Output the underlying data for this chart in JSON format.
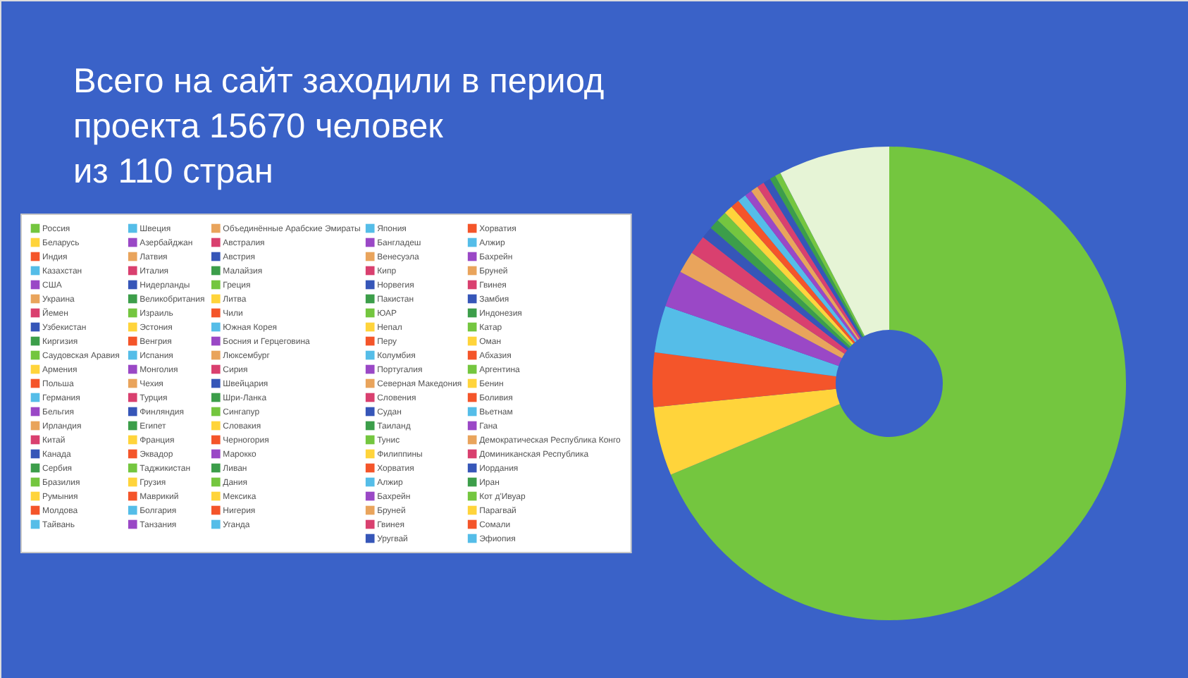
{
  "chart_data": {
    "type": "donut",
    "title": "Всего на сайт заходили в период\nпроекта 15670 человек\nиз 110 стран",
    "legend": "left",
    "categories": [
      "Россия",
      "Беларусь",
      "Индия",
      "Казахстан",
      "США",
      "Украина",
      "Йемен",
      "Узбекистан",
      "Киргизия",
      "Саудовская Аравия",
      "Армения",
      "Польша",
      "Германия",
      "Бельгия",
      "Ирландия",
      "Китай",
      "Канада",
      "Сербия",
      "Бразилия",
      "Румыния",
      "Молдова",
      "Тайвань",
      "Швеция",
      "Азербайджан",
      "Латвия",
      "Италия",
      "Нидерланды",
      "Великобритания",
      "Израиль",
      "Эстония",
      "Венгрия",
      "Испания",
      "Монголия",
      "Чехия",
      "Турция",
      "Финляндия",
      "Египет",
      "Франция",
      "Эквадор",
      "Таджикистан",
      "Грузия",
      "Маврикий",
      "Болгария",
      "Танзания",
      "Объединённые Арабские Эмираты",
      "Австралия",
      "Австрия",
      "Малайзия",
      "Греция",
      "Литва",
      "Чили",
      "Южная Корея",
      "Босния и Герцеговина",
      "Люксембург",
      "Сирия",
      "Швейцария",
      "Шри-Ланка",
      "Сингапур",
      "Словакия",
      "Черногория",
      "Марокко",
      "Ливан",
      "Дания",
      "Мексика",
      "Нигерия",
      "Уганда",
      "Япония",
      "Бангладеш",
      "Венесуэла",
      "Кипр",
      "Норвегия",
      "Пакистан",
      "ЮАР",
      "Непал",
      "Перу",
      "Колумбия",
      "Португалия",
      "Северная Македония",
      "Словения",
      "Судан",
      "Таиланд",
      "Тунис",
      "Филиппины",
      "Хорватия",
      "Алжир",
      "Бахрейн",
      "Бруней",
      "Гвинея",
      "Уругвай",
      "Хорватия",
      "Алжир",
      "Бахрейн",
      "Бруней",
      "Гвинея",
      "Замбия",
      "Индонезия",
      "Катар",
      "Оман",
      "Абхазия",
      "Аргентина",
      "Бенин",
      "Боливия",
      "Вьетнам",
      "Гана",
      "Демократическая Республика Конго",
      "Доминиканская Республика",
      "Иордания",
      "Иран",
      "Кот д'Ивуар",
      "Парагвай",
      "Сомали",
      "Эфиопия",
      null
    ],
    "values": [
      68.7,
      4.7,
      3.7,
      3.2,
      2.5,
      1.5,
      1.3,
      0.8,
      0.7,
      0.7,
      0.6,
      0.6,
      0.6,
      0.5,
      0.5,
      0.5,
      0.5,
      0.4,
      0.4,
      null,
      null,
      null,
      null,
      null,
      null,
      null,
      null,
      null,
      null,
      null,
      null,
      null,
      null,
      null,
      null,
      null,
      null,
      null,
      null,
      null,
      null,
      null,
      null,
      null,
      null,
      null,
      null,
      null,
      null,
      null,
      null,
      null,
      null,
      null,
      null,
      null,
      null,
      null,
      null,
      null,
      null,
      null,
      null,
      null,
      null,
      null,
      null,
      null,
      null,
      null,
      null,
      null,
      null,
      null,
      null,
      null,
      null,
      null,
      null,
      null,
      null,
      null,
      null,
      null,
      null,
      null,
      null,
      null,
      null,
      null,
      null,
      null,
      null,
      null,
      null,
      null,
      null,
      null,
      null,
      null,
      null,
      null,
      null,
      null,
      null,
      null,
      null,
      null,
      null,
      null,
      null,
      null,
      7.6
    ],
    "colors": [
      "#74c63f",
      "#ffd43b",
      "#f4552a",
      "#55bde8",
      "#9a48c6",
      "#e9a45c",
      "#d9406f",
      "#3656b8",
      "#3c9e4a",
      "#74c63f",
      "#ffd43b",
      "#f4552a",
      "#55bde8",
      "#9a48c6",
      "#e9a45c",
      "#d9406f",
      "#3656b8",
      "#3c9e4a",
      "#74c63f",
      "#ffd43b",
      "#f4552a",
      "#55bde8",
      "#55bde8",
      "#9a48c6",
      "#e9a45c",
      "#d9406f",
      "#3656b8",
      "#3c9e4a",
      "#74c63f",
      "#ffd43b",
      "#f4552a",
      "#55bde8",
      "#9a48c6",
      "#e9a45c",
      "#d9406f",
      "#3656b8",
      "#3c9e4a",
      "#ffd43b",
      "#f4552a",
      "#74c63f",
      "#ffd43b",
      "#f4552a",
      "#55bde8",
      "#9a48c6",
      "#e9a45c",
      "#d9406f",
      "#3656b8",
      "#3c9e4a",
      "#74c63f",
      "#ffd43b",
      "#f4552a",
      "#55bde8",
      "#9a48c6",
      "#e9a45c",
      "#d9406f",
      "#3656b8",
      "#3c9e4a",
      "#74c63f",
      "#ffd43b",
      "#f4552a",
      "#9a48c6",
      "#3c9e4a",
      "#74c63f",
      "#ffd43b",
      "#f4552a",
      "#55bde8",
      "#55bde8",
      "#9a48c6",
      "#e9a45c",
      "#d9406f",
      "#3656b8",
      "#3c9e4a",
      "#74c63f",
      "#ffd43b",
      "#f4552a",
      "#55bde8",
      "#9a48c6",
      "#e9a45c",
      "#d9406f",
      "#3656b8",
      "#3c9e4a",
      "#74c63f",
      "#ffd43b",
      "#f4552a",
      "#55bde8",
      "#9a48c6",
      "#e9a45c",
      "#d9406f",
      "#3656b8",
      "#f4552a",
      "#55bde8",
      "#9a48c6",
      "#e9a45c",
      "#d9406f",
      "#3656b8",
      "#3c9e4a",
      "#74c63f",
      "#ffd43b",
      "#f4552a",
      "#74c63f",
      "#ffd43b",
      "#f4552a",
      "#55bde8",
      "#9a48c6",
      "#e9a45c",
      "#d9406f",
      "#3656b8",
      "#3c9e4a",
      "#74c63f",
      "#ffd43b",
      "#f4552a",
      "#55bde8",
      "#e6f4d6"
    ]
  }
}
